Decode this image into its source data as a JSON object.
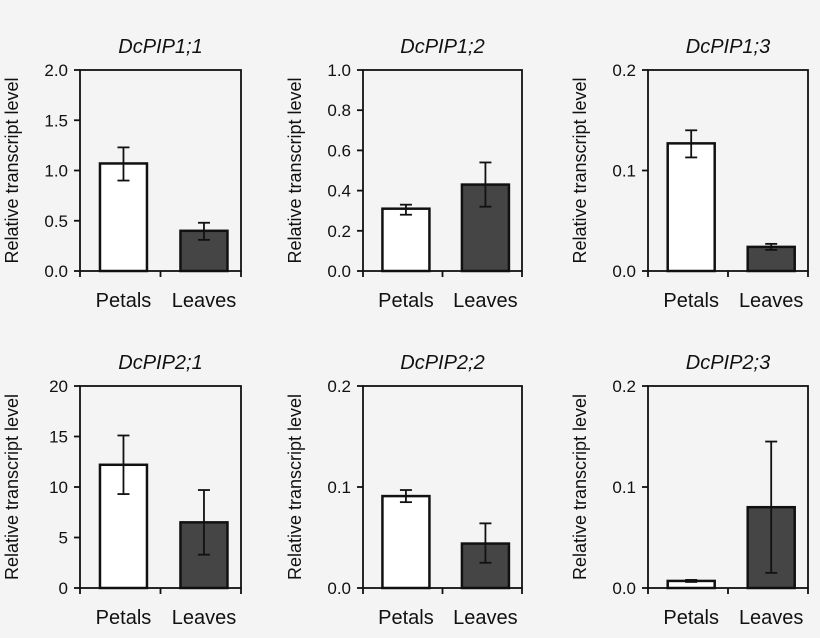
{
  "chart_data": [
    {
      "type": "bar",
      "title": "DcPIP1;1",
      "ylabel": "Relative transcript level",
      "categories": [
        "Petals",
        "Leaves"
      ],
      "values": [
        1.07,
        0.4
      ],
      "error": [
        [
          0.9,
          1.23
        ],
        [
          0.31,
          0.48
        ]
      ],
      "ylim": [
        0,
        2.0
      ],
      "yticks": [
        "0.0",
        "0.5",
        "1.0",
        "1.5",
        "2.0"
      ]
    },
    {
      "type": "bar",
      "title": "DcPIP1;2",
      "ylabel": "Relative transcript level",
      "categories": [
        "Petals",
        "Leaves"
      ],
      "values": [
        0.31,
        0.43
      ],
      "error": [
        [
          0.28,
          0.33
        ],
        [
          0.32,
          0.54
        ]
      ],
      "ylim": [
        0,
        1.0
      ],
      "yticks": [
        "0.0",
        "0.2",
        "0.4",
        "0.6",
        "0.8",
        "1.0"
      ]
    },
    {
      "type": "bar",
      "title": "DcPIP1;3",
      "ylabel": "Relative transcript level",
      "categories": [
        "Petals",
        "Leaves"
      ],
      "values": [
        0.127,
        0.024
      ],
      "error": [
        [
          0.113,
          0.14
        ],
        [
          0.021,
          0.027
        ]
      ],
      "ylim": [
        0,
        0.2
      ],
      "yticks": [
        "0.0",
        "0.1",
        "0.2"
      ]
    },
    {
      "type": "bar",
      "title": "DcPIP2;1",
      "ylabel": "Relative transcript level",
      "categories": [
        "Petals",
        "Leaves"
      ],
      "values": [
        12.2,
        6.5
      ],
      "error": [
        [
          9.3,
          15.1
        ],
        [
          3.3,
          9.7
        ]
      ],
      "ylim": [
        0,
        20
      ],
      "yticks": [
        "0",
        "5",
        "10",
        "15",
        "20"
      ]
    },
    {
      "type": "bar",
      "title": "DcPIP2;2",
      "ylabel": "Relative transcript level",
      "categories": [
        "Petals",
        "Leaves"
      ],
      "values": [
        0.091,
        0.044
      ],
      "error": [
        [
          0.085,
          0.097
        ],
        [
          0.025,
          0.064
        ]
      ],
      "ylim": [
        0,
        0.2
      ],
      "yticks": [
        "0.0",
        "0.1",
        "0.2"
      ]
    },
    {
      "type": "bar",
      "title": "DcPIP2;3",
      "ylabel": "Relative transcript level",
      "categories": [
        "Petals",
        "Leaves"
      ],
      "values": [
        0.007,
        0.08
      ],
      "error": [
        [
          0.006,
          0.008
        ],
        [
          0.015,
          0.145
        ]
      ],
      "ylim": [
        0,
        0.2
      ],
      "yticks": [
        "0.0",
        "0.1",
        "0.2"
      ]
    }
  ],
  "colors": {
    "Petals": "#ffffff",
    "Leaves": "#454545",
    "axis": "#111111",
    "background": "#f4f4f4"
  }
}
